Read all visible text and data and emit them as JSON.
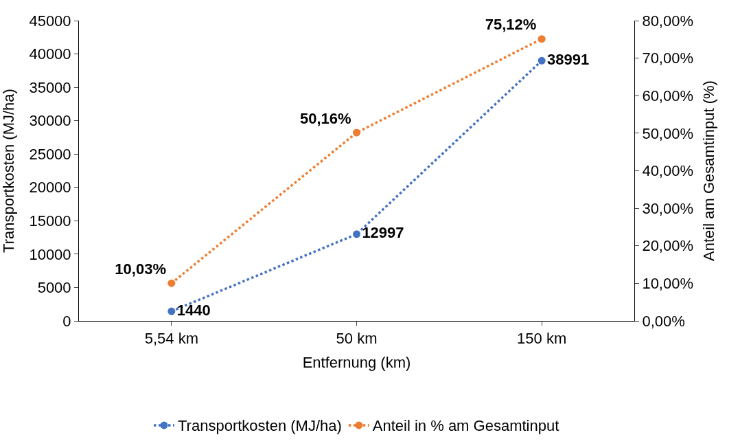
{
  "chart_data": {
    "type": "line",
    "xlabel": "Entfernung (km)",
    "ylabel": "Transportkosten (MJ/ha)",
    "y2label": "Anteil am Gesamtinput (%)",
    "categories": [
      "5,54 km",
      "50 km",
      "150 km"
    ],
    "series": [
      {
        "name": "Transportkosten (MJ/ha)",
        "color": "#4472c4",
        "values": [
          1440,
          12997,
          38991
        ],
        "value_labels": [
          "1440",
          "12997",
          "38991"
        ]
      },
      {
        "name": "Anteil in % am Gesamtinput",
        "color": "#ed7d31",
        "axis": "y2",
        "values": [
          10.03,
          50.16,
          75.12
        ],
        "value_labels": [
          "10,03%",
          "50,16%",
          "75,12%"
        ]
      }
    ],
    "ylim": [
      0,
      45000
    ],
    "yticks": [
      0,
      5000,
      10000,
      15000,
      20000,
      25000,
      30000,
      35000,
      40000,
      45000
    ],
    "y2lim": [
      0,
      80
    ],
    "y2ticks": [
      {
        "value": 0,
        "label": "0,00%"
      },
      {
        "value": 10,
        "label": "10,00%"
      },
      {
        "value": 20,
        "label": "20,00%"
      },
      {
        "value": 30,
        "label": "30,00%"
      },
      {
        "value": 40,
        "label": "40,00%"
      },
      {
        "value": 50,
        "label": "50,00%"
      },
      {
        "value": 60,
        "label": "60,00%"
      },
      {
        "value": 70,
        "label": "70,00%"
      },
      {
        "value": 80,
        "label": "80,00%"
      }
    ],
    "marker": "circle",
    "line_style": "dotted",
    "legend": "bottom"
  }
}
